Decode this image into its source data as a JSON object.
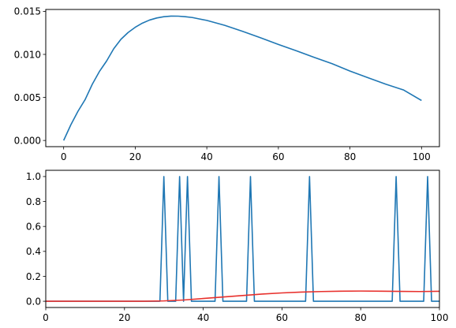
{
  "chart_data": [
    {
      "type": "line",
      "title": "",
      "xlabel": "",
      "ylabel": "",
      "xlim": [
        -5,
        105
      ],
      "ylim": [
        -0.00072,
        0.01522
      ],
      "grid": false,
      "xticks": [
        0,
        20,
        40,
        60,
        80,
        100
      ],
      "xtick_labels": [
        "0",
        "20",
        "40",
        "60",
        "80",
        "100"
      ],
      "yticks": [
        0.0,
        0.005,
        0.01,
        0.015
      ],
      "ytick_labels": [
        "0.000",
        "0.005",
        "0.010",
        "0.015"
      ],
      "series": [
        {
          "color": "#1f77b4",
          "x": [
            0,
            2,
            4,
            6,
            8,
            10,
            12,
            14,
            16,
            18,
            20,
            22,
            24,
            26,
            28,
            30,
            32,
            34,
            36,
            38,
            40,
            45,
            50,
            55,
            60,
            65,
            70,
            75,
            80,
            85,
            90,
            95,
            100
          ],
          "y": [
            0.0,
            0.00181,
            0.00339,
            0.00475,
            0.00653,
            0.00802,
            0.00923,
            0.01066,
            0.01175,
            0.01254,
            0.01315,
            0.01363,
            0.01399,
            0.01423,
            0.01438,
            0.01445,
            0.01444,
            0.01438,
            0.01428,
            0.01411,
            0.01395,
            0.01338,
            0.01268,
            0.01193,
            0.01116,
            0.01042,
            0.00966,
            0.00892,
            0.00806,
            0.00729,
            0.00654,
            0.00586,
            0.00464
          ]
        }
      ]
    },
    {
      "type": "line",
      "title": "",
      "xlabel": "",
      "ylabel": "",
      "xlim": [
        0,
        100
      ],
      "ylim": [
        -0.05,
        1.05
      ],
      "grid": false,
      "xticks": [
        0,
        20,
        40,
        60,
        80,
        100
      ],
      "xtick_labels": [
        "0",
        "20",
        "40",
        "60",
        "80",
        "100"
      ],
      "yticks": [
        0.0,
        0.2,
        0.4,
        0.6,
        0.8,
        1.0
      ],
      "ytick_labels": [
        "0.0",
        "0.2",
        "0.4",
        "0.6",
        "0.8",
        "1.0"
      ],
      "series": [
        {
          "color": "#1f77b4",
          "x": [
            0,
            29,
            30,
            31,
            33,
            34,
            35,
            36,
            37,
            43,
            44,
            45,
            51,
            52,
            53,
            66,
            67,
            68,
            88,
            89,
            90,
            96,
            97,
            98,
            100
          ],
          "y": [
            0,
            0,
            1,
            0,
            0,
            1,
            0,
            1,
            0,
            0,
            1,
            0,
            0,
            1,
            0,
            0,
            1,
            0,
            0,
            1,
            0,
            0,
            1,
            0,
            0
          ]
        },
        {
          "color": "#e8312d",
          "x": [
            0,
            25,
            30,
            35,
            40,
            45,
            50,
            55,
            60,
            65,
            70,
            75,
            80,
            85,
            90,
            95,
            100
          ],
          "y": [
            0.0,
            0.0,
            0.003,
            0.01,
            0.022,
            0.034,
            0.046,
            0.058,
            0.067,
            0.074,
            0.078,
            0.081,
            0.082,
            0.081,
            0.079,
            0.078,
            0.08
          ]
        }
      ]
    }
  ]
}
